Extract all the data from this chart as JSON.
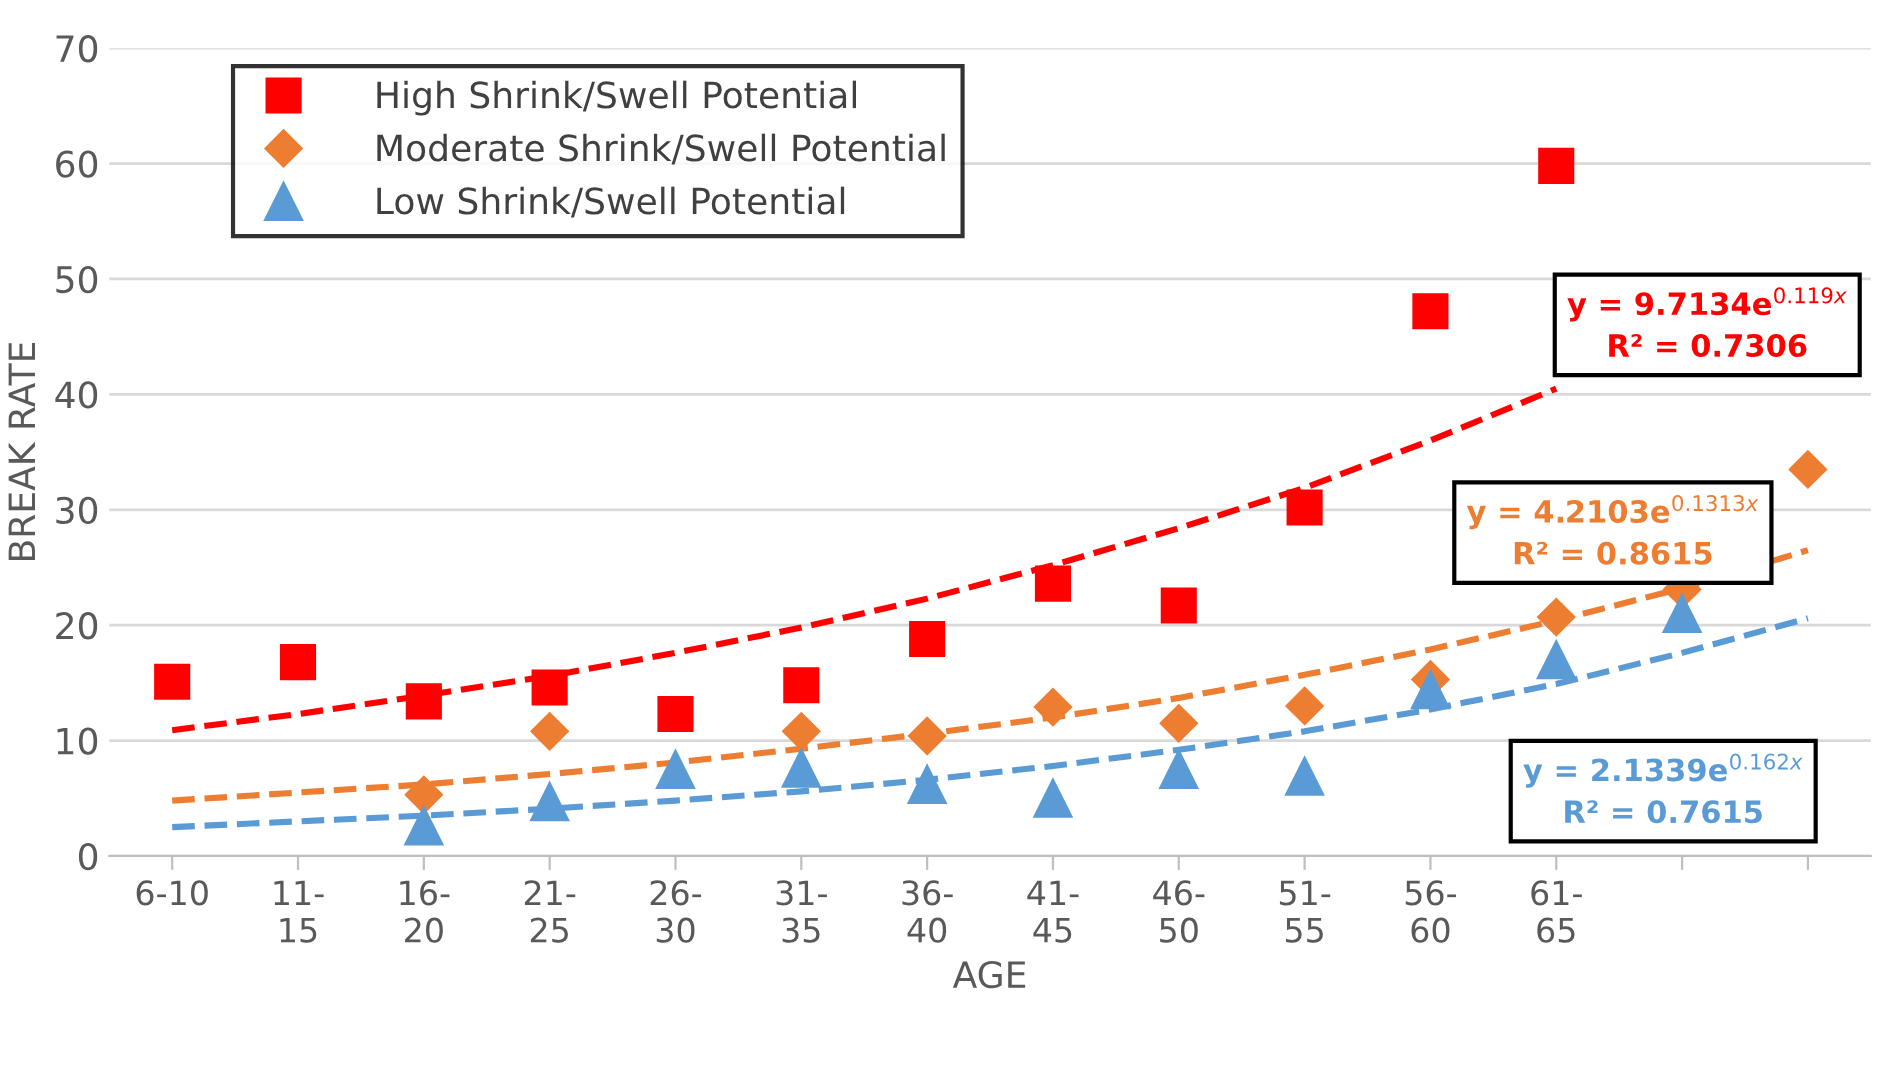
{
  "chart_data": {
    "type": "scatter",
    "xlabel": "AGE",
    "ylabel": "BREAK RATE",
    "categories": [
      "6-10",
      "11-15",
      "16-20",
      "21-25",
      "26-30",
      "31-35",
      "36-40",
      "41-45",
      "46-50",
      "51-55",
      "56-60",
      "61-65",
      null,
      null
    ],
    "series": [
      {
        "name": "High Shrink/Swell Potential",
        "color": "#ff0000",
        "marker": "square",
        "values": [
          15.1,
          16.8,
          13.4,
          14.6,
          12.3,
          14.8,
          18.8,
          23.6,
          21.7,
          30.2,
          47.2,
          59.8,
          null,
          null
        ]
      },
      {
        "name": "Moderate Shrink/Swell Potential",
        "color": "#ed7d31",
        "marker": "diamond",
        "values": [
          null,
          null,
          5.3,
          10.8,
          null,
          10.8,
          10.4,
          12.9,
          11.5,
          13.0,
          15.3,
          20.7,
          23.1,
          33.5
        ]
      },
      {
        "name": "Low Shrink/Swell Potential",
        "color": "#5b9bd5",
        "marker": "triangle",
        "values": [
          null,
          null,
          2.6,
          4.7,
          7.5,
          7.6,
          6.2,
          5.0,
          7.5,
          6.9,
          14.4,
          17.0,
          21.0,
          null
        ]
      },
      {
        "type": "line",
        "color": "#ff0000",
        "line_style": "dashed",
        "values": [
          10.9,
          12.3,
          13.9,
          15.6,
          17.6,
          19.8,
          22.3,
          25.2,
          28.4,
          31.9,
          36.0,
          40.5,
          null,
          null
        ]
      },
      {
        "type": "line",
        "color": "#ed7d31",
        "line_style": "dashed",
        "values": [
          4.8,
          5.5,
          6.2,
          7.1,
          8.1,
          9.3,
          10.6,
          12.0,
          13.7,
          15.7,
          17.9,
          20.4,
          23.2,
          26.5
        ]
      },
      {
        "type": "line",
        "color": "#5b9bd5",
        "line_style": "dashed",
        "values": [
          2.5,
          3.0,
          3.5,
          4.1,
          4.8,
          5.6,
          6.6,
          7.8,
          9.2,
          10.8,
          12.7,
          14.9,
          17.6,
          20.6
        ]
      }
    ],
    "annotations": [
      "y = 9.7134e$^{0.119x}$\nR² = 0.7306",
      "y = 4.2103e$^{0.1313x}$\nR² = 0.8615",
      "y = 2.1339e$^{0.162x}$\nR² = 0.7615"
    ],
    "ylim": [
      0,
      70
    ],
    "yticks": [
      0,
      10,
      20,
      30,
      40,
      50,
      60,
      70
    ],
    "grid": "y",
    "legend": "top left"
  }
}
